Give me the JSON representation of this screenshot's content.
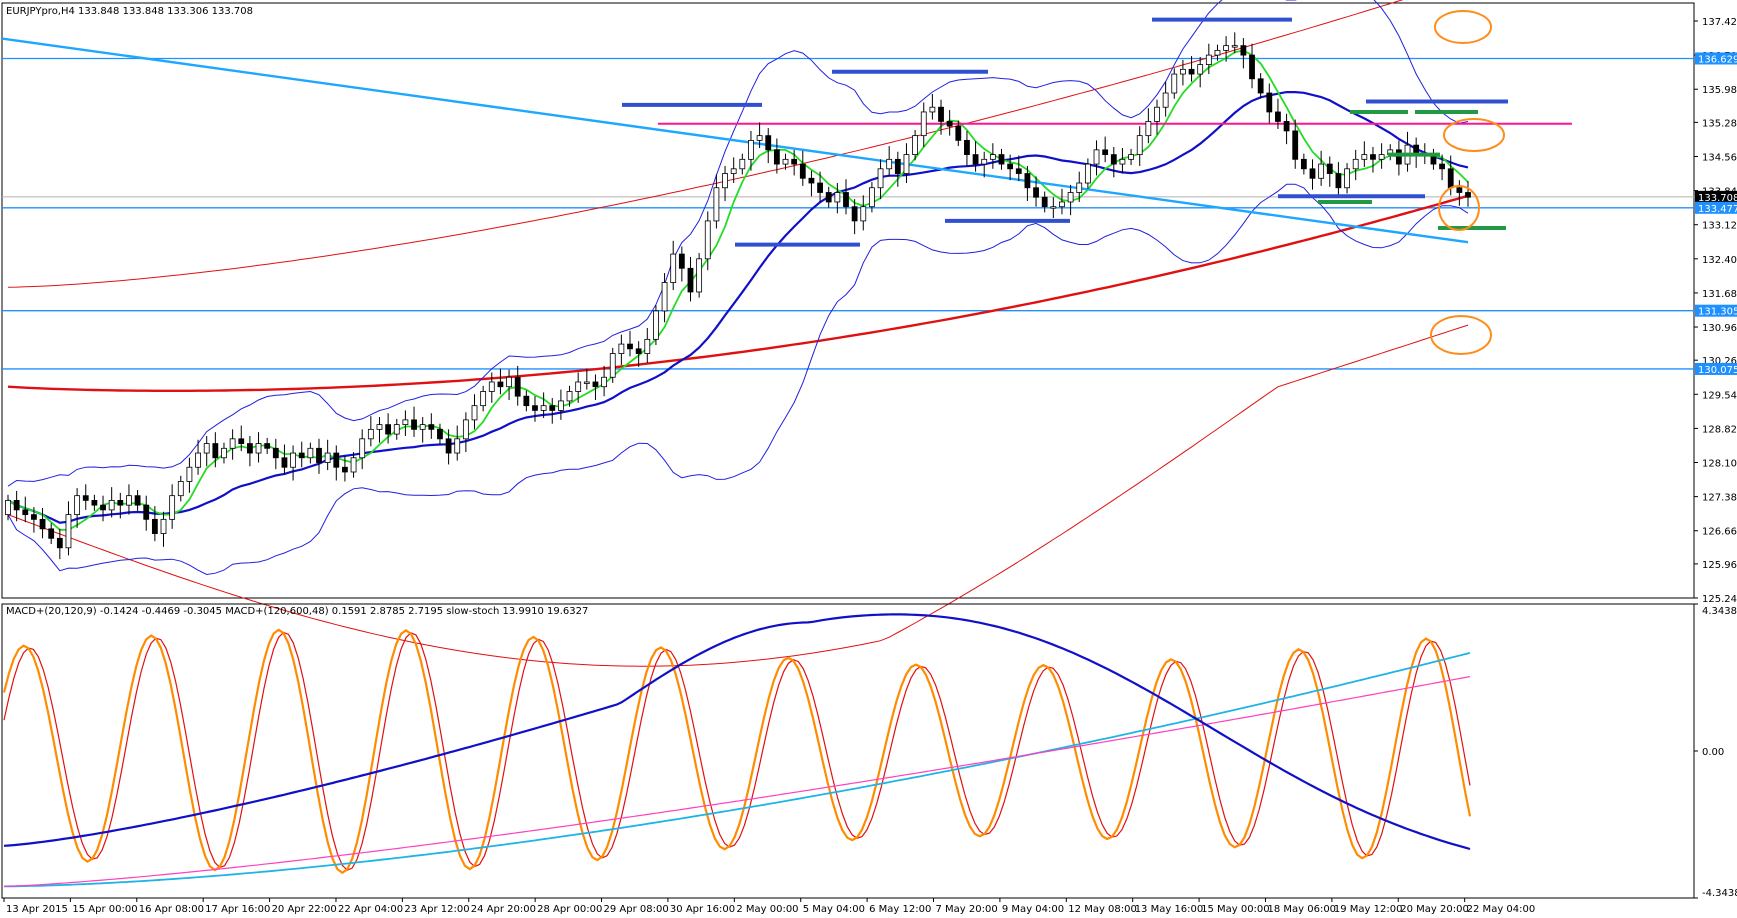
{
  "main_header": "EURJPYpro,H4  133.848 133.848 133.306 133.708",
  "sub_header": "MACD+(20,120,9) -0.1424 -0.4469 -0.3045  MACD+(120,600,48) 0.1591 2.8785 2.7195  slow-stoch 13.9910 19.6327",
  "colors": {
    "bull": "#ffffff",
    "bear": "#000000",
    "hline": "#1e90ff",
    "trendline": "#1ea7ff",
    "ma_red": "#e01010",
    "ma_blue": "#1010c8",
    "ma_green": "#22dd22",
    "bands": "#2020e0",
    "resist": "#ff1493",
    "marker_blue": "#3050d0",
    "marker_green": "#229944",
    "circle": "#ff8c1a",
    "stoch_main": "#ff8c00",
    "stoch_sig": "#e01010",
    "macd_long": "#1eb4e6",
    "macd_long_sig": "#ff40c0"
  },
  "chart_data": [
    {
      "type": "candlestick",
      "symbol": "EURJPYpro",
      "timeframe": "H4",
      "ylim": [
        125.24,
        137.8
      ],
      "y_ticks": [
        "137.420",
        "136.700",
        "135.980",
        "135.280",
        "134.560",
        "133.840",
        "133.120",
        "132.400",
        "131.680",
        "130.960",
        "130.260",
        "129.540",
        "128.820",
        "128.100",
        "127.380",
        "126.660",
        "125.960",
        "125.240"
      ],
      "price_labels": [
        {
          "value": 136.629,
          "text": "136.629",
          "style": "hline"
        },
        {
          "value": 133.708,
          "text": "133.708",
          "style": "current"
        },
        {
          "value": 133.477,
          "text": "133.477",
          "style": "hline"
        },
        {
          "value": 131.305,
          "text": "131.305",
          "style": "hline"
        },
        {
          "value": 130.075,
          "text": "130.075",
          "style": "hline"
        }
      ],
      "horizontal_levels": [
        136.629,
        133.477,
        131.305,
        130.075
      ],
      "resistance_level": 135.25,
      "x_labels": [
        "13 Apr 2015",
        "15 Apr 00:00",
        "16 Apr 08:00",
        "17 Apr 16:00",
        "20 Apr 22:00",
        "22 Apr 04:00",
        "23 Apr 12:00",
        "24 Apr 20:00",
        "28 Apr 00:00",
        "29 Apr 08:00",
        "30 Apr 16:00",
        "2 May 00:00",
        "5 May 04:00",
        "6 May 12:00",
        "7 May 20:00",
        "9 May 04:00",
        "12 May 08:00",
        "13 May 16:00",
        "15 May 00:00",
        "18 May 06:00",
        "19 May 12:00",
        "20 May 20:00",
        "22 May 04:00"
      ],
      "close": [
        127.3,
        127.1,
        127.0,
        126.9,
        126.7,
        126.5,
        126.3,
        127.0,
        127.4,
        127.3,
        127.2,
        127.1,
        127.3,
        127.2,
        127.4,
        127.2,
        126.9,
        126.6,
        126.9,
        127.4,
        127.7,
        128.0,
        128.3,
        128.5,
        128.2,
        128.4,
        128.6,
        128.5,
        128.3,
        128.5,
        128.4,
        128.2,
        128.0,
        128.3,
        128.2,
        128.4,
        128.1,
        128.3,
        128.0,
        127.9,
        128.2,
        128.6,
        128.8,
        128.9,
        128.7,
        128.9,
        129.0,
        128.8,
        128.9,
        128.8,
        128.6,
        128.3,
        128.6,
        129.0,
        129.3,
        129.6,
        129.8,
        129.7,
        129.9,
        129.5,
        129.3,
        129.2,
        129.3,
        129.2,
        129.4,
        129.6,
        129.8,
        129.8,
        129.7,
        129.9,
        130.4,
        130.6,
        130.5,
        130.4,
        130.7,
        131.3,
        131.9,
        132.5,
        132.2,
        131.7,
        132.4,
        133.2,
        133.9,
        134.2,
        134.3,
        134.5,
        134.9,
        135.0,
        134.7,
        134.4,
        134.5,
        134.4,
        134.1,
        134.0,
        133.8,
        133.6,
        133.8,
        133.5,
        133.2,
        133.5,
        133.9,
        134.3,
        134.5,
        134.2,
        134.6,
        135.0,
        135.5,
        135.6,
        135.3,
        135.2,
        134.9,
        134.6,
        134.4,
        134.5,
        134.6,
        134.4,
        134.3,
        134.2,
        133.9,
        133.7,
        133.5,
        133.5,
        133.6,
        133.8,
        134.0,
        134.4,
        134.7,
        134.6,
        134.4,
        134.5,
        134.6,
        135.0,
        135.3,
        135.6,
        135.9,
        136.3,
        136.4,
        136.3,
        136.5,
        136.7,
        136.8,
        136.9,
        136.9,
        136.7,
        136.2,
        135.9,
        135.5,
        135.3,
        135.1,
        134.5,
        134.3,
        134.1,
        134.4,
        134.2,
        133.9,
        134.3,
        134.5,
        134.6,
        134.5,
        134.6,
        134.7,
        134.4,
        134.8,
        134.6,
        134.6,
        134.4,
        134.3,
        133.9,
        133.8,
        133.7
      ],
      "open": [
        127.0,
        127.3,
        127.1,
        127.0,
        126.9,
        126.7,
        126.5,
        126.3,
        127.0,
        127.4,
        127.3,
        127.2,
        127.1,
        127.3,
        127.2,
        127.4,
        127.2,
        126.9,
        126.6,
        126.9,
        127.4,
        127.7,
        128.0,
        128.3,
        128.5,
        128.2,
        128.4,
        128.6,
        128.5,
        128.3,
        128.5,
        128.4,
        128.2,
        128.0,
        128.3,
        128.2,
        128.4,
        128.1,
        128.3,
        128.0,
        127.9,
        128.2,
        128.6,
        128.8,
        128.9,
        128.7,
        128.9,
        129.0,
        128.8,
        128.9,
        128.8,
        128.6,
        128.3,
        128.6,
        129.0,
        129.3,
        129.6,
        129.8,
        129.7,
        129.9,
        129.5,
        129.3,
        129.2,
        129.3,
        129.2,
        129.4,
        129.6,
        129.8,
        129.8,
        129.7,
        129.9,
        130.4,
        130.6,
        130.5,
        130.4,
        130.7,
        131.3,
        131.9,
        132.5,
        132.2,
        131.7,
        132.4,
        133.2,
        133.9,
        134.2,
        134.3,
        134.5,
        134.9,
        135.0,
        134.7,
        134.4,
        134.5,
        134.4,
        134.1,
        134.0,
        133.8,
        133.6,
        133.8,
        133.5,
        133.2,
        133.5,
        133.9,
        134.3,
        134.5,
        134.2,
        134.6,
        135.0,
        135.5,
        135.6,
        135.3,
        135.2,
        134.9,
        134.6,
        134.4,
        134.5,
        134.6,
        134.4,
        134.3,
        134.2,
        133.9,
        133.7,
        133.5,
        133.5,
        133.6,
        133.8,
        134.0,
        134.4,
        134.7,
        134.6,
        134.4,
        134.5,
        134.6,
        135.0,
        135.3,
        135.6,
        135.9,
        136.3,
        136.4,
        136.3,
        136.5,
        136.7,
        136.8,
        136.9,
        136.9,
        136.7,
        136.2,
        135.9,
        135.5,
        135.3,
        135.1,
        134.5,
        134.3,
        134.1,
        134.4,
        134.2,
        133.9,
        134.3,
        134.5,
        134.6,
        134.5,
        134.6,
        134.7,
        134.4,
        134.8,
        134.6,
        134.6,
        134.4,
        134.3,
        133.9,
        133.8
      ]
    },
    {
      "type": "line",
      "name": "indicator-panel",
      "ylim": [
        -4.3438,
        4.3438
      ],
      "y_ticks": [
        "4.3438",
        "0.00",
        "-4.3438"
      ]
    }
  ]
}
